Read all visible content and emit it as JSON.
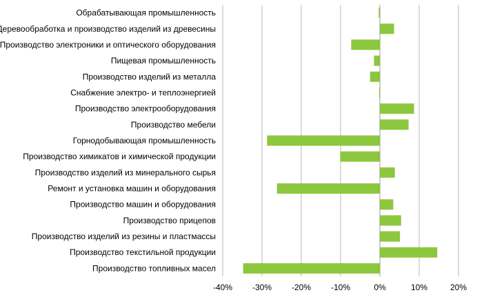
{
  "chart_data": {
    "type": "bar",
    "orientation": "horizontal",
    "categories": [
      "Обрабатывающая промышленность",
      "Деревообработка и производство изделий из древесины",
      "Производство электроники и оптического оборудования",
      "Пищевая промышленность",
      "Производство изделий из металла",
      "Снабжение электро- и теплоэнергией",
      "Производство электрооборудования",
      "Производство мебели",
      "Горнодобывающая промышленность",
      "Производство химикатов и химической продукции",
      "Производство изделий из минерального сырья",
      "Ремонт и установка машин и оборудования",
      "Производство машин и оборудования",
      "Производство прицепов",
      "Производство изделий из резины и пластмассы",
      "Производство текстильной продукции",
      "Производство топливных масел"
    ],
    "values": [
      -0.3,
      3.6,
      -7.3,
      -1.5,
      -2.5,
      -0.2,
      8.7,
      7.3,
      -28.7,
      -10.1,
      3.8,
      -26.2,
      3.4,
      5.4,
      5.1,
      14.6,
      -34.8
    ],
    "units": "%",
    "xlim": [
      -40,
      20
    ],
    "x_ticks": [
      -40,
      -30,
      -20,
      -10,
      0,
      10,
      20
    ],
    "x_tick_labels": [
      "-40%",
      "-30%",
      "-20%",
      "-10%",
      "0%",
      "10%",
      "20%"
    ],
    "bar_color": "#8dc63f",
    "grid": "vertical",
    "legend": "none",
    "title": "",
    "xlabel": "",
    "ylabel": ""
  }
}
